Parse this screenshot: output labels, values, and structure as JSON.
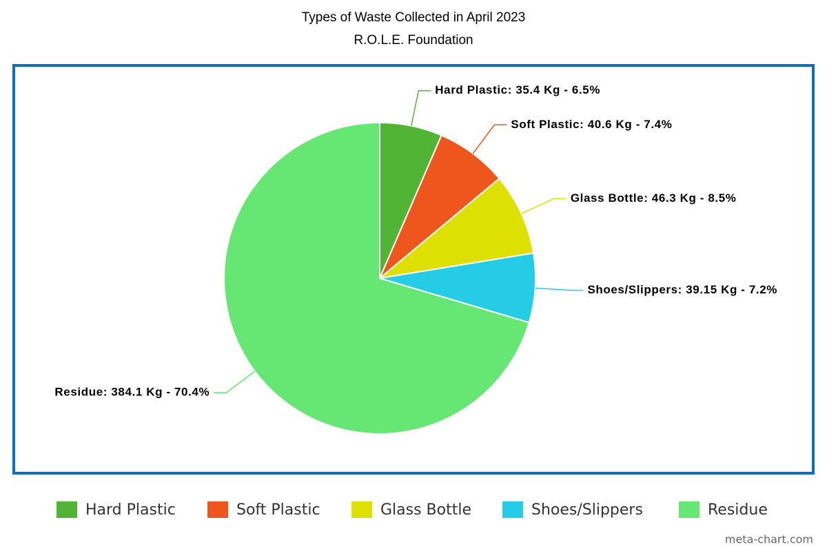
{
  "chart_data": {
    "type": "pie",
    "title": "Types of Waste Collected in April 2023",
    "subtitle": "R.O.L.E. Foundation",
    "categories": [
      "Hard Plastic",
      "Soft Plastic",
      "Glass Bottle",
      "Shoes/Slippers",
      "Residue"
    ],
    "values": [
      35.4,
      40.6,
      46.3,
      39.15,
      384.1
    ],
    "value_labels": [
      "Hard Plastic: 35.4 Kg - 6.5%",
      "Soft Plastic: 40.6 Kg - 7.4%",
      "Glass Bottle: 46.3 Kg - 8.5%",
      "Shoes/Slippers: 39.15 Kg - 7.2%",
      "Residue: 384.1 Kg - 70.4%"
    ],
    "colors": [
      "#52b435",
      "#ee561d",
      "#dde000",
      "#25cce6",
      "#66e673"
    ],
    "legend": "bottom",
    "watermark": "meta-chart.com"
  }
}
